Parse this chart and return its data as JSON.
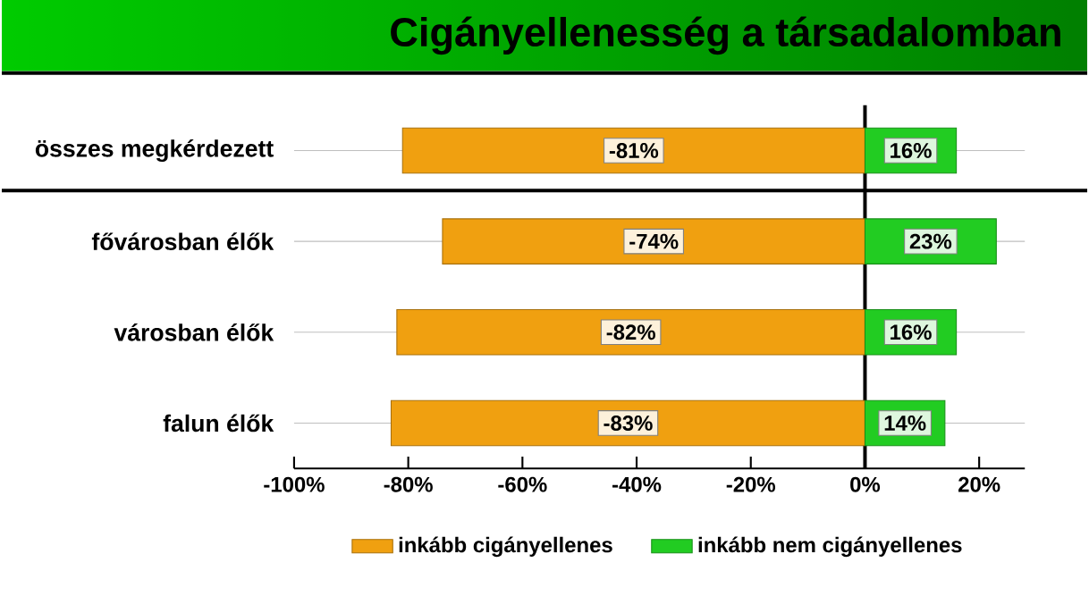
{
  "chart_data": {
    "type": "bar",
    "orientation": "horizontal",
    "title": "Cigányellenesség a társadalomban",
    "categories": [
      "összes megkérdezett",
      "fővárosban élők",
      "városban élők",
      "falun élők"
    ],
    "series": [
      {
        "name": "inkább cigányellenes",
        "color": "#f0a010",
        "values": [
          -81,
          -74,
          -82,
          -83
        ],
        "value_labels": [
          "-81%",
          "-74%",
          "-82%",
          "-83%"
        ]
      },
      {
        "name": "inkább nem cigányellenes",
        "color": "#22cc22",
        "values": [
          16,
          23,
          16,
          14
        ],
        "value_labels": [
          "16%",
          "23%",
          "16%",
          "14%"
        ]
      }
    ],
    "xlim": [
      -100,
      28
    ],
    "xticks": [
      {
        "value": -100,
        "label": "-100%"
      },
      {
        "value": -80,
        "label": "-80%"
      },
      {
        "value": -60,
        "label": "-60%"
      },
      {
        "value": -40,
        "label": "-40%"
      },
      {
        "value": -20,
        "label": "-20%"
      },
      {
        "value": 0,
        "label": "0%"
      },
      {
        "value": 20,
        "label": "20%"
      }
    ],
    "ref_lines": [
      {
        "axis": "x",
        "value": 0,
        "color": "#000000"
      }
    ],
    "stacked": true,
    "grid": "y",
    "legend": "bottom"
  }
}
